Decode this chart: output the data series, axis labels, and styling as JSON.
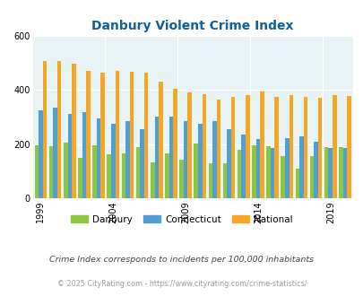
{
  "title": "Danbury Violent Crime Index",
  "title_color": "#1060a0",
  "years": [
    1999,
    2000,
    2001,
    2002,
    2003,
    2004,
    2005,
    2006,
    2007,
    2008,
    2009,
    2010,
    2011,
    2012,
    2013,
    2014,
    2015,
    2016,
    2017,
    2018,
    2019,
    2020
  ],
  "danbury": [
    197,
    193,
    205,
    150,
    195,
    163,
    167,
    188,
    133,
    165,
    143,
    201,
    128,
    130,
    180,
    195,
    192,
    157,
    110,
    155,
    190,
    190
  ],
  "connecticut": [
    323,
    335,
    310,
    318,
    295,
    274,
    285,
    255,
    302,
    300,
    285,
    274,
    285,
    255,
    235,
    218,
    186,
    222,
    230,
    208,
    185,
    185
  ],
  "national": [
    507,
    507,
    497,
    470,
    463,
    470,
    468,
    462,
    430,
    405,
    390,
    384,
    364,
    373,
    380,
    395,
    373,
    382,
    375,
    370,
    379,
    378
  ],
  "bar_colors": [
    "#8dc63f",
    "#4f9fd4",
    "#f5a623"
  ],
  "bg_color": "#e8f3f5",
  "ylim": [
    0,
    600
  ],
  "yticks": [
    0,
    200,
    400,
    600
  ],
  "legend_labels": [
    "Danbury",
    "Connecticut",
    "National"
  ],
  "footnote1": "Crime Index corresponds to incidents per 100,000 inhabitants",
  "footnote2": "© 2025 CityRating.com - https://www.cityrating.com/crime-statistics/",
  "footnote1_color": "#444444",
  "footnote2_color": "#999999",
  "grid_color": "#ffffff",
  "labeled_years": [
    1999,
    2004,
    2009,
    2014,
    2019
  ]
}
